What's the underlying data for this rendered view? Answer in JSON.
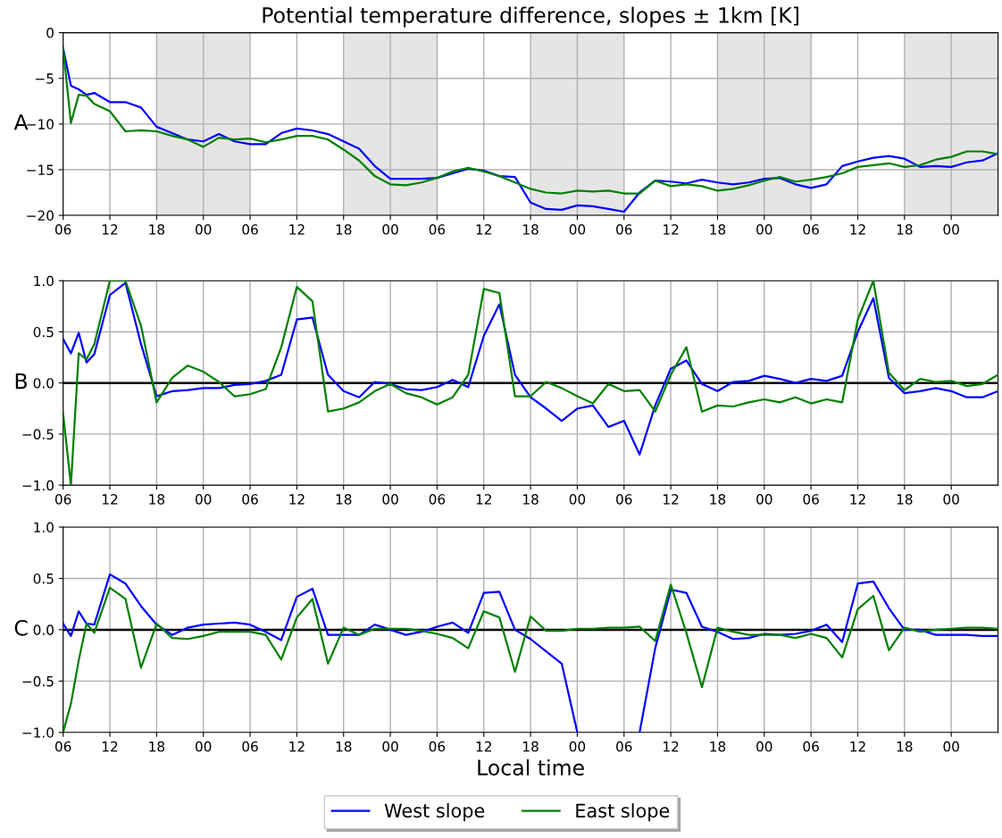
{
  "chart_data": [
    {
      "type": "line",
      "title": "Potential temperature difference, slopes ± 1km [K]",
      "ylabel": "A",
      "x": [
        6,
        7,
        8,
        9,
        10,
        12,
        14,
        16,
        18,
        20,
        22,
        24,
        26,
        28,
        30,
        32,
        34,
        36,
        38,
        40,
        42,
        44,
        46,
        48,
        50,
        52,
        54,
        56,
        58,
        60,
        62,
        64,
        66,
        68,
        70,
        72,
        74,
        76,
        78,
        80,
        82,
        84,
        86,
        88,
        90,
        92,
        94,
        96,
        98,
        100,
        102,
        104,
        106,
        108,
        110,
        112,
        114,
        116,
        118,
        120,
        122,
        124,
        126
      ],
      "series": [
        {
          "color": "#0000ff",
          "values": [
            -1.7,
            -5.8,
            -6.2,
            -6.8,
            -6.6,
            -7.6,
            -7.6,
            -8.2,
            -10.3,
            -11.0,
            -11.7,
            -11.9,
            -11.1,
            -11.9,
            -12.2,
            -12.2,
            -11.0,
            -10.5,
            -10.7,
            -11.1,
            -11.9,
            -12.7,
            -14.6,
            -16.0,
            -16.0,
            -16.0,
            -15.9,
            -15.4,
            -14.9,
            -15.1,
            -15.7,
            -15.8,
            -18.6,
            -19.3,
            -19.4,
            -18.9,
            -19.0,
            -19.3,
            -19.6,
            -17.5,
            -16.2,
            -16.3,
            -16.5,
            -16.1,
            -16.4,
            -16.6,
            -16.4,
            -16.0,
            -15.9,
            -16.6,
            -17.0,
            -16.6,
            -14.6,
            -14.1,
            -13.7,
            -13.5,
            -13.8,
            -14.7,
            -14.6,
            -14.7,
            -14.2,
            -14.0,
            -13.2
          ]
        },
        {
          "color": "#008000",
          "values": [
            -1.7,
            -9.9,
            -6.8,
            -6.9,
            -7.8,
            -8.6,
            -10.8,
            -10.7,
            -10.8,
            -11.3,
            -11.7,
            -12.5,
            -11.5,
            -11.7,
            -11.6,
            -12.0,
            -11.7,
            -11.3,
            -11.3,
            -11.7,
            -12.8,
            -14.0,
            -15.7,
            -16.6,
            -16.7,
            -16.4,
            -15.9,
            -15.2,
            -14.8,
            -15.2,
            -15.7,
            -16.4,
            -17.1,
            -17.5,
            -17.6,
            -17.3,
            -17.4,
            -17.3,
            -17.6,
            -17.6,
            -16.2,
            -16.8,
            -16.6,
            -16.8,
            -17.3,
            -17.1,
            -16.7,
            -16.2,
            -15.8,
            -16.3,
            -16.1,
            -15.8,
            -15.4,
            -14.7,
            -14.5,
            -14.3,
            -14.7,
            -14.5,
            -13.9,
            -13.6,
            -13.0,
            -13.0,
            -13.3
          ]
        }
      ],
      "xlim": [
        6,
        126
      ],
      "ylim": [
        -20,
        0
      ],
      "xticks": [
        {
          "value": 6,
          "label": "06"
        },
        {
          "value": 12,
          "label": "12"
        },
        {
          "value": 18,
          "label": "18"
        },
        {
          "value": 24,
          "label": "00"
        },
        {
          "value": 30,
          "label": "06"
        },
        {
          "value": 36,
          "label": "12"
        },
        {
          "value": 42,
          "label": "18"
        },
        {
          "value": 48,
          "label": "00"
        },
        {
          "value": 54,
          "label": "06"
        },
        {
          "value": 60,
          "label": "12"
        },
        {
          "value": 66,
          "label": "18"
        },
        {
          "value": 72,
          "label": "00"
        },
        {
          "value": 78,
          "label": "06"
        },
        {
          "value": 84,
          "label": "12"
        },
        {
          "value": 90,
          "label": "18"
        },
        {
          "value": 96,
          "label": "00"
        },
        {
          "value": 102,
          "label": "06"
        },
        {
          "value": 108,
          "label": "12"
        },
        {
          "value": 114,
          "label": "18"
        },
        {
          "value": 120,
          "label": "00"
        }
      ],
      "yticks": [
        {
          "value": -20,
          "label": "−20"
        },
        {
          "value": -15,
          "label": "−15"
        },
        {
          "value": -10,
          "label": "−10"
        },
        {
          "value": -5,
          "label": "−5"
        },
        {
          "value": 0,
          "label": "0"
        }
      ],
      "bands": [
        {
          "axis": "x",
          "from": 18,
          "to": 30,
          "color": "#e5e5e5"
        },
        {
          "axis": "x",
          "from": 42,
          "to": 54,
          "color": "#e5e5e5"
        },
        {
          "axis": "x",
          "from": 66,
          "to": 78,
          "color": "#e5e5e5"
        },
        {
          "axis": "x",
          "from": 90,
          "to": 102,
          "color": "#e5e5e5"
        },
        {
          "axis": "x",
          "from": 114,
          "to": 126,
          "color": "#e5e5e5"
        }
      ],
      "grid": true
    },
    {
      "type": "line",
      "ylabel": "B",
      "x": [
        6,
        7,
        8,
        9,
        10,
        12,
        14,
        16,
        18,
        20,
        22,
        24,
        26,
        28,
        30,
        32,
        34,
        36,
        38,
        40,
        42,
        44,
        46,
        48,
        50,
        52,
        54,
        56,
        58,
        60,
        62,
        64,
        66,
        68,
        70,
        72,
        74,
        76,
        78,
        80,
        82,
        84,
        86,
        88,
        90,
        92,
        94,
        96,
        98,
        100,
        102,
        104,
        106,
        108,
        110,
        112,
        114,
        116,
        118,
        120,
        122,
        124,
        126
      ],
      "series": [
        {
          "color": "#0000ff",
          "values": [
            0.43,
            0.29,
            0.49,
            0.2,
            0.28,
            0.86,
            0.98,
            0.38,
            -0.13,
            -0.08,
            -0.07,
            -0.05,
            -0.05,
            -0.02,
            -0.01,
            0.02,
            0.08,
            0.62,
            0.64,
            0.08,
            -0.08,
            -0.14,
            0.01,
            -0.01,
            -0.06,
            -0.07,
            -0.04,
            0.03,
            -0.04,
            0.46,
            0.77,
            0.08,
            -0.14,
            -0.25,
            -0.37,
            -0.25,
            -0.22,
            -0.43,
            -0.37,
            -0.7,
            -0.22,
            0.14,
            0.22,
            -0.01,
            -0.08,
            0.01,
            0.02,
            0.07,
            0.04,
            0.0,
            0.04,
            0.02,
            0.07,
            0.5,
            0.83,
            0.05,
            -0.1,
            -0.08,
            -0.05,
            -0.08,
            -0.14,
            -0.14,
            -0.08
          ]
        },
        {
          "color": "#008000",
          "values": [
            -0.3,
            -1.0,
            0.29,
            0.23,
            0.38,
            1.0,
            1.0,
            0.56,
            -0.19,
            0.05,
            0.17,
            0.11,
            0.01,
            -0.13,
            -0.11,
            -0.06,
            0.35,
            0.94,
            0.8,
            -0.28,
            -0.25,
            -0.19,
            -0.08,
            -0.01,
            -0.1,
            -0.14,
            -0.21,
            -0.14,
            0.08,
            0.92,
            0.88,
            -0.13,
            -0.13,
            0.01,
            -0.05,
            -0.13,
            -0.2,
            -0.01,
            -0.08,
            -0.07,
            -0.28,
            0.08,
            0.35,
            -0.28,
            -0.22,
            -0.23,
            -0.19,
            -0.16,
            -0.19,
            -0.14,
            -0.2,
            -0.16,
            -0.19,
            0.62,
            1.0,
            0.1,
            -0.07,
            0.04,
            0.01,
            0.02,
            -0.03,
            -0.01,
            0.08
          ]
        }
      ],
      "xlim": [
        6,
        126
      ],
      "ylim": [
        -1,
        1
      ],
      "xticks": [
        {
          "value": 6,
          "label": "06"
        },
        {
          "value": 12,
          "label": "12"
        },
        {
          "value": 18,
          "label": "18"
        },
        {
          "value": 24,
          "label": "00"
        },
        {
          "value": 30,
          "label": "06"
        },
        {
          "value": 36,
          "label": "12"
        },
        {
          "value": 42,
          "label": "18"
        },
        {
          "value": 48,
          "label": "00"
        },
        {
          "value": 54,
          "label": "06"
        },
        {
          "value": 60,
          "label": "12"
        },
        {
          "value": 66,
          "label": "18"
        },
        {
          "value": 72,
          "label": "00"
        },
        {
          "value": 78,
          "label": "06"
        },
        {
          "value": 84,
          "label": "12"
        },
        {
          "value": 90,
          "label": "18"
        },
        {
          "value": 96,
          "label": "00"
        },
        {
          "value": 102,
          "label": "06"
        },
        {
          "value": 108,
          "label": "12"
        },
        {
          "value": 114,
          "label": "18"
        },
        {
          "value": 120,
          "label": "00"
        }
      ],
      "yticks": [
        {
          "value": -1,
          "label": "−1.0"
        },
        {
          "value": -0.5,
          "label": "−0.5"
        },
        {
          "value": 0,
          "label": "0.0"
        },
        {
          "value": 0.5,
          "label": "0.5"
        },
        {
          "value": 1,
          "label": "1.0"
        }
      ],
      "ref_lines": [
        {
          "axis": "y",
          "value": 0,
          "color": "#000000"
        }
      ],
      "grid": true
    },
    {
      "type": "line",
      "ylabel": "C",
      "xlabel": "Local time",
      "x": [
        6,
        7,
        8,
        9,
        10,
        12,
        14,
        16,
        18,
        20,
        22,
        24,
        26,
        28,
        30,
        32,
        34,
        36,
        38,
        40,
        42,
        44,
        46,
        48,
        50,
        52,
        54,
        56,
        58,
        60,
        62,
        64,
        66,
        68,
        70,
        72,
        74,
        76,
        78,
        80,
        82,
        84,
        86,
        88,
        90,
        92,
        94,
        96,
        98,
        100,
        102,
        104,
        106,
        108,
        110,
        112,
        114,
        116,
        118,
        120,
        122,
        124,
        126
      ],
      "series": [
        {
          "name": "West slope",
          "color": "#0000ff",
          "values": [
            0.06,
            -0.06,
            0.18,
            0.06,
            0.05,
            0.54,
            0.45,
            0.23,
            0.05,
            -0.05,
            0.02,
            0.05,
            0.06,
            0.07,
            0.05,
            -0.02,
            -0.1,
            0.32,
            0.4,
            -0.05,
            -0.05,
            -0.05,
            0.05,
            0.0,
            -0.05,
            -0.02,
            0.03,
            0.07,
            -0.03,
            0.36,
            0.37,
            0.0,
            -0.09,
            -0.21,
            -0.33,
            -1.0,
            null,
            null,
            null,
            -1.0,
            -0.18,
            0.39,
            0.36,
            0.03,
            -0.02,
            -0.09,
            -0.08,
            -0.04,
            -0.05,
            -0.04,
            -0.01,
            0.05,
            -0.12,
            0.45,
            0.47,
            0.21,
            0.0,
            0.0,
            -0.05,
            -0.05,
            -0.05,
            -0.06,
            -0.06
          ]
        },
        {
          "name": "East slope",
          "color": "#008000",
          "values": [
            -1.0,
            -0.72,
            -0.3,
            0.06,
            -0.03,
            0.41,
            0.3,
            -0.37,
            0.06,
            -0.08,
            -0.09,
            -0.06,
            -0.02,
            -0.02,
            -0.02,
            -0.05,
            -0.29,
            0.12,
            0.3,
            -0.33,
            0.02,
            -0.05,
            0.01,
            0.01,
            0.01,
            -0.01,
            -0.04,
            -0.08,
            -0.18,
            0.18,
            0.12,
            -0.41,
            0.13,
            -0.01,
            -0.01,
            0.01,
            0.01,
            0.02,
            0.02,
            0.03,
            -0.11,
            0.44,
            -0.03,
            -0.56,
            0.02,
            -0.02,
            -0.05,
            -0.05,
            -0.05,
            -0.08,
            -0.04,
            -0.08,
            -0.27,
            0.2,
            0.33,
            -0.2,
            0.02,
            -0.02,
            0.0,
            0.01,
            0.02,
            0.02,
            0.01
          ]
        }
      ],
      "xlim": [
        6,
        126
      ],
      "ylim": [
        -1,
        1
      ],
      "xticks": [
        {
          "value": 6,
          "label": "06"
        },
        {
          "value": 12,
          "label": "12"
        },
        {
          "value": 18,
          "label": "18"
        },
        {
          "value": 24,
          "label": "00"
        },
        {
          "value": 30,
          "label": "06"
        },
        {
          "value": 36,
          "label": "12"
        },
        {
          "value": 42,
          "label": "18"
        },
        {
          "value": 48,
          "label": "00"
        },
        {
          "value": 54,
          "label": "06"
        },
        {
          "value": 60,
          "label": "12"
        },
        {
          "value": 66,
          "label": "18"
        },
        {
          "value": 72,
          "label": "00"
        },
        {
          "value": 78,
          "label": "06"
        },
        {
          "value": 84,
          "label": "12"
        },
        {
          "value": 90,
          "label": "18"
        },
        {
          "value": 96,
          "label": "00"
        },
        {
          "value": 102,
          "label": "06"
        },
        {
          "value": 108,
          "label": "12"
        },
        {
          "value": 114,
          "label": "18"
        },
        {
          "value": 120,
          "label": "00"
        }
      ],
      "yticks": [
        {
          "value": -1,
          "label": "−1.0"
        },
        {
          "value": -0.5,
          "label": "−0.5"
        },
        {
          "value": 0,
          "label": "0.0"
        },
        {
          "value": 0.5,
          "label": "0.5"
        },
        {
          "value": 1,
          "label": "1.0"
        }
      ],
      "ref_lines": [
        {
          "axis": "y",
          "value": 0,
          "color": "#000000"
        }
      ],
      "grid": true,
      "legend": "bottom"
    }
  ]
}
